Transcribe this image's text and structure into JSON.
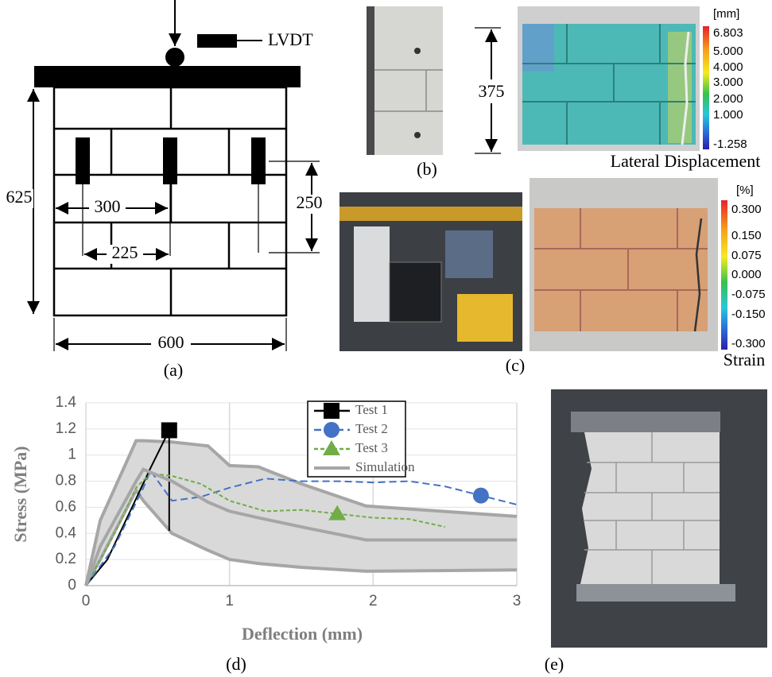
{
  "panel_labels": [
    "(a)",
    "(b)",
    "(c)",
    "(d)",
    "(e)"
  ],
  "diagram": {
    "lvdt": "LVDT",
    "height": "625",
    "gauge_spacing_1": "300",
    "gauge_spacing_2": "225",
    "gauge_length": "250",
    "width": "600"
  },
  "panel_b": {
    "height": "375",
    "unit": "[mm]",
    "colorbar_labels": [
      "6.803",
      "5.000",
      "4.000",
      "3.000",
      "2.000",
      "1.000",
      "-1.258"
    ],
    "caption": "Lateral Displacement"
  },
  "panel_c": {
    "unit": "[%]",
    "colorbar_labels": [
      "0.300",
      "0.150",
      "0.075",
      "0.000",
      "-0.075",
      "-0.150",
      "-0.300"
    ],
    "caption": "Strain"
  },
  "chart_data": {
    "type": "line",
    "y_label": "Stress (MPa)",
    "x_label": "Deflection (mm)",
    "xlim": [
      0,
      3
    ],
    "xticks": [
      0,
      1,
      2,
      3
    ],
    "ylim": [
      0,
      1.4
    ],
    "yticks": [
      0,
      0.2,
      0.4,
      0.6,
      0.8,
      1,
      1.2,
      1.4
    ],
    "grid": true,
    "legend": "top-right",
    "series": [
      {
        "name": "Test 1",
        "color": "#000000",
        "dash": "solid",
        "marker": "square",
        "marker_index": 4,
        "x": [
          0,
          0.15,
          0.3,
          0.45,
          0.58,
          0.58
        ],
        "values": [
          0,
          0.2,
          0.55,
          0.9,
          1.19,
          0.42
        ]
      },
      {
        "name": "Test 2",
        "color": "#4472c4",
        "dash": "dashed",
        "marker": "circle",
        "marker_index": 13,
        "x": [
          0,
          0.2,
          0.4,
          0.45,
          0.6,
          0.8,
          1.0,
          1.25,
          1.5,
          1.75,
          2.0,
          2.25,
          2.5,
          2.75,
          3.0
        ],
        "values": [
          0,
          0.3,
          0.75,
          0.88,
          0.65,
          0.68,
          0.75,
          0.82,
          0.8,
          0.8,
          0.79,
          0.8,
          0.76,
          0.69,
          0.62
        ]
      },
      {
        "name": "Test 3",
        "color": "#70ad47",
        "dash": "dotted",
        "marker": "triangle",
        "marker_index": 9,
        "x": [
          0,
          0.2,
          0.35,
          0.45,
          0.6,
          0.8,
          1.0,
          1.25,
          1.5,
          1.75,
          2.0,
          2.25,
          2.5
        ],
        "values": [
          0,
          0.4,
          0.75,
          0.86,
          0.84,
          0.78,
          0.65,
          0.57,
          0.58,
          0.55,
          0.52,
          0.51,
          0.45
        ]
      },
      {
        "name": "Simulation",
        "color": "#a6a6a6",
        "band_color": "#d9d9d9",
        "dash": "solid",
        "x": [
          0,
          0.1,
          0.35,
          0.4,
          0.6,
          0.85,
          1.0,
          1.2,
          1.5,
          1.95,
          3
        ],
        "values": [
          0,
          0.3,
          0.8,
          0.89,
          0.8,
          0.64,
          0.57,
          0.52,
          0.45,
          0.35,
          0.35
        ],
        "upper": [
          0,
          0.5,
          1.11,
          1.11,
          1.1,
          1.07,
          0.92,
          0.91,
          0.78,
          0.61,
          0.53
        ],
        "lower": [
          0,
          0.2,
          0.73,
          0.65,
          0.4,
          0.27,
          0.2,
          0.17,
          0.14,
          0.11,
          0.12
        ]
      }
    ]
  }
}
